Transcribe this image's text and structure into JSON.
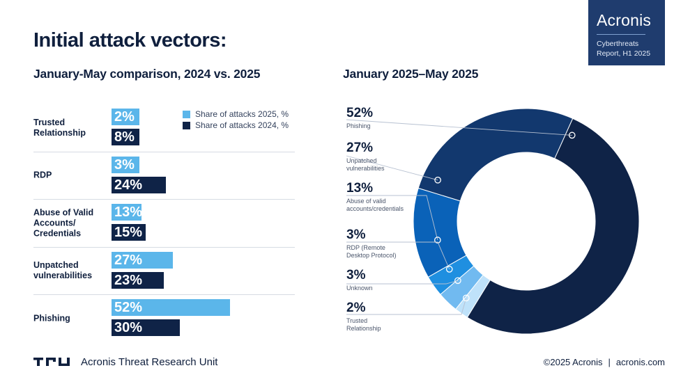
{
  "title": "Initial attack vectors:",
  "brand": {
    "name": "Acronis",
    "report": "Cyberthreats Report, H1 2025"
  },
  "left_subtitle": "January-May comparison, 2024 vs. 2025",
  "right_subtitle": "January 2025–May 2025",
  "colors": {
    "navy": "#0f2347",
    "light_blue": "#5bb6ea"
  },
  "chart_data": [
    {
      "type": "bar",
      "orientation": "horizontal",
      "title": "January-May comparison, 2024 vs. 2025",
      "categories": [
        "Trusted Relationship",
        "RDP",
        "Abuse of Valid Accounts/ Credentials",
        "Unpatched vulnerabilities",
        "Phishing"
      ],
      "series": [
        {
          "name": "Share of attacks 2025, %",
          "color": "#5bb6ea",
          "values": [
            2,
            3,
            13,
            27,
            52
          ],
          "labels": [
            "2%",
            "3%",
            "13%",
            "27%",
            "52%"
          ]
        },
        {
          "name": "Share of attacks 2024, %",
          "color": "#0f2347",
          "values": [
            8,
            24,
            15,
            23,
            30
          ],
          "labels": [
            "8%",
            "24%",
            "15%",
            "23%",
            "30%"
          ]
        }
      ],
      "legend": "top-right"
    },
    {
      "type": "pie",
      "style": "donut",
      "title": "January 2025–May 2025",
      "slices": [
        {
          "label": "Phishing",
          "value": 52,
          "pct": "52%",
          "color": "#0f2347"
        },
        {
          "label": "Unpatched vulnerabilities",
          "value": 27,
          "pct": "27%",
          "color": "#12386e"
        },
        {
          "label": "Abuse of valid accounts/credentials",
          "value": 13,
          "pct": "13%",
          "color": "#0a62b8"
        },
        {
          "label": "RDP (Remote Desktop Protocol)",
          "value": 3,
          "pct": "3%",
          "color": "#1f8fe0"
        },
        {
          "label": "Unknown",
          "value": 3,
          "pct": "3%",
          "color": "#71baf0"
        },
        {
          "label": "Trusted Relationship",
          "value": 2,
          "pct": "2%",
          "color": "#bfe2fa"
        }
      ]
    }
  ],
  "footer": {
    "unit": "Acronis Threat Research Unit",
    "copyright": "©2025 Acronis",
    "separator": "|",
    "site": "acronis.com"
  }
}
